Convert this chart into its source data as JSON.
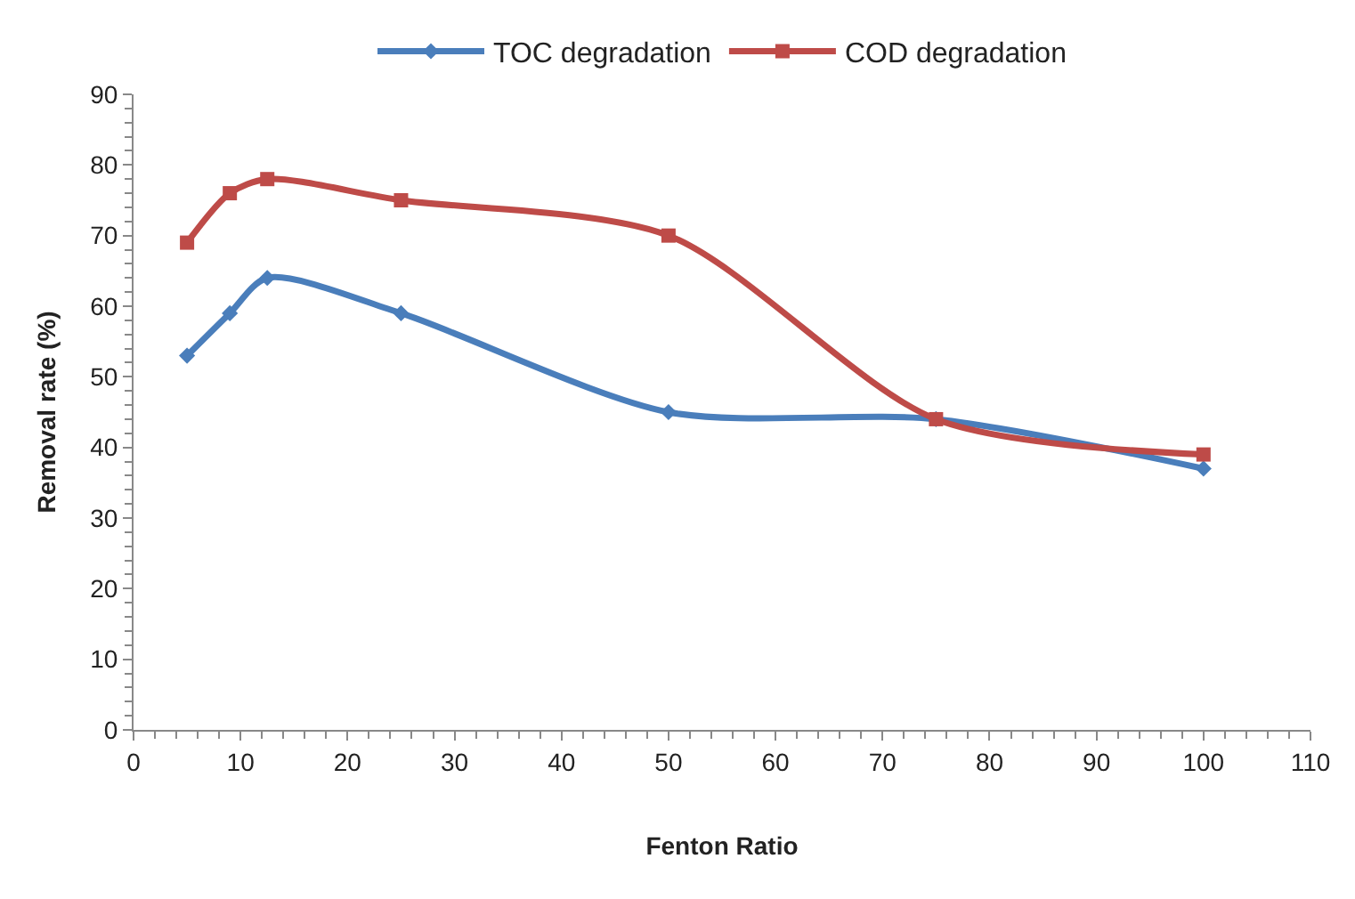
{
  "chart_data": {
    "type": "line",
    "xlabel": "Fenton Ratio",
    "ylabel": "Removal rate (%)",
    "xlim": [
      0,
      110
    ],
    "xticks": [
      0,
      10,
      20,
      30,
      40,
      50,
      60,
      70,
      80,
      90,
      100,
      110
    ],
    "ylim": [
      0,
      90
    ],
    "yticks": [
      0,
      10,
      20,
      30,
      40,
      50,
      60,
      70,
      80,
      90
    ],
    "grid": false,
    "legend": "top",
    "series": [
      {
        "name": "TOC degradation",
        "color": "#4a7ebb",
        "marker": "diamond",
        "x": [
          5,
          9,
          12.5,
          25,
          50,
          75,
          100
        ],
        "values": [
          53,
          59,
          64,
          59,
          45,
          44,
          37
        ]
      },
      {
        "name": "COD degradation",
        "color": "#be4b48",
        "marker": "square",
        "x": [
          5,
          9,
          12.5,
          25,
          50,
          75,
          100
        ],
        "values": [
          69,
          76,
          78,
          75,
          70,
          44,
          39
        ]
      }
    ]
  }
}
